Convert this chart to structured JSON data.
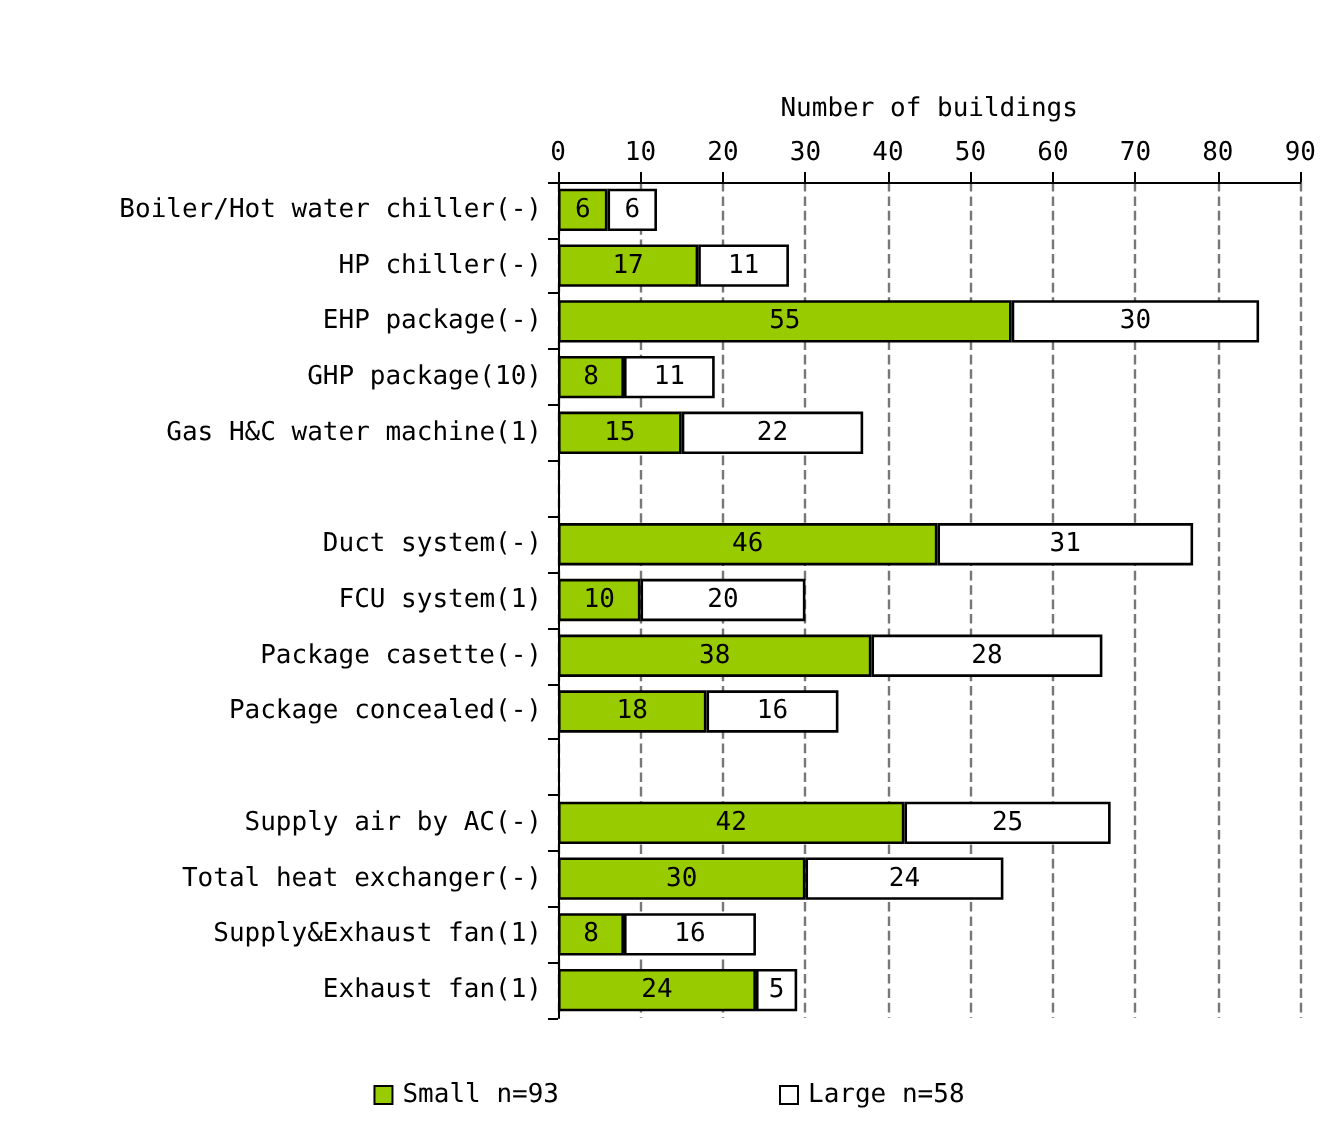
{
  "chart_data": {
    "type": "bar",
    "orientation": "horizontal",
    "stacked": true,
    "xlabel": "Number of buildings",
    "categories": [
      "Boiler/Hot water chiller(-)",
      "HP chiller(-)",
      "EHP package(-)",
      "GHP package(10)",
      "Gas H&C water machine(1)",
      null,
      "Duct system(-)",
      "FCU system(1)",
      "Package casette(-)",
      "Package concealed(-)",
      null,
      "Supply air by AC(-)",
      "Total heat exchanger(-)",
      "Supply&Exhaust fan(1)",
      "Exhaust fan(1)"
    ],
    "series": [
      {
        "name": "Small n=93",
        "color": "#99cc00",
        "values": [
          6,
          17,
          55,
          8,
          15,
          null,
          46,
          10,
          38,
          18,
          null,
          42,
          30,
          8,
          24
        ]
      },
      {
        "name": "Large n=58",
        "color": "#ffffff",
        "values": [
          6,
          11,
          30,
          11,
          22,
          null,
          31,
          20,
          28,
          16,
          null,
          25,
          24,
          16,
          5
        ]
      }
    ],
    "xlim": [
      0,
      90
    ],
    "xticks": [
      0,
      10,
      20,
      30,
      40,
      50,
      60,
      70,
      80,
      90
    ],
    "grid": "x",
    "data_labels": true,
    "legend": "bottom"
  }
}
